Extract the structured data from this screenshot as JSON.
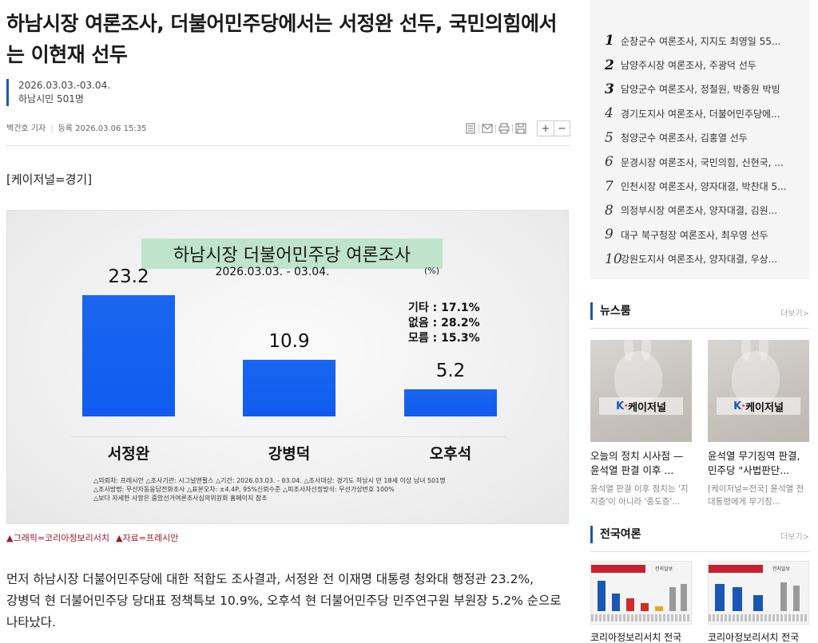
{
  "article": {
    "headline": "하남시장 여론조사, 더불어민주당에서는 서정완 선두, 국민의힘에서는 이현재 선두",
    "summary_period": "2026.03.03.-03.04.",
    "summary_sample": "하남시민 501명",
    "reporter": "백건호 기자",
    "registered": "등록 2026.03.06 15:35",
    "source": "[케이저널=경기]",
    "caption_graphic": "▲그래픽=코리아정보리서치",
    "caption_data": "▲자료=프레시안",
    "body": "먼저 하남시장 더불어민주당에 대한 적합도 조사결과, 서정완 전 이재명 대통령 청와대 행정관 23.2%, 강병덕 현 더불어민주당 당대표 정책특보 10.9%, 오후석 현 더불어민주당 민주연구원 부원장 5.2% 순으로 나타났다."
  },
  "toolbar": {
    "icons": [
      "print-list-icon",
      "mail-icon",
      "print-icon",
      "save-icon"
    ],
    "zoom_in": "+",
    "zoom_out": "−"
  },
  "chart_data": {
    "type": "bar",
    "title": "하남시장 더불어민주당 여론조사",
    "period": "2026.03.03. - 03.04.",
    "unit": "(%)",
    "categories": [
      "서정완",
      "강병덕",
      "오후석"
    ],
    "values": [
      23.2,
      10.9,
      5.2
    ],
    "value_labels": [
      "23.2",
      "10.9",
      "5.2"
    ],
    "bar_color": "#0f5cf0",
    "ylim": [
      0,
      25
    ],
    "extras": [
      "기타 : 17.1%",
      "없음 : 28.2%",
      "모름 : 15.3%"
    ],
    "notes": [
      "△의뢰처: 프레시안 △조사기관: 시그널앤펄스 △기간: 2026.03.03. - 03.04. △조사대상: 경기도 하남시 만 18세 이상 남녀 501명",
      "△조사방법: 무선자동응답전화조사 △표본오차: ±4.4P, 95%신뢰수준 △피조사자선정방식: 무선가상번호 100%",
      "△보다 자세한 사항은 중앙선거여론조사심의위원회 홈페이지 참조"
    ]
  },
  "sidebar": {
    "ranking": [
      {
        "num": "1",
        "text": "순창군수 여론조사, 지지도 최영일 55..."
      },
      {
        "num": "2",
        "text": "남양주시장 여론조사, 주광덕 선두"
      },
      {
        "num": "3",
        "text": "담양군수 여론조사, 정철원, 박종원 박빙"
      },
      {
        "num": "4",
        "text": "경기도지사 여론조사, 더불어민주당에..."
      },
      {
        "num": "5",
        "text": "청양군수 여론조사, 김홍열 선두"
      },
      {
        "num": "6",
        "text": "문경시장 여론조사, 국민의힘, 신현국, ..."
      },
      {
        "num": "7",
        "text": "인천시장 여론조사, 양자대결, 박찬대 5..."
      },
      {
        "num": "8",
        "text": "의정부시장 여론조사, 양자대결, 김원..."
      },
      {
        "num": "9",
        "text": "대구 북구청장 여론조사, 최우영 선두"
      },
      {
        "num": "10",
        "text": "강원도지사 여론조사, 양자대결, 우상..."
      }
    ],
    "newsroom": {
      "title": "뉴스룸",
      "more": "더보기>",
      "logo_k": "K",
      "logo_dot": "·",
      "logo_name": "케이저널",
      "cards": [
        {
          "title": "오늘의 정치 시사점 — 윤석열 판결 이후 ...",
          "desc": "윤석열 판결 이후 정치는 '지지층'이 아니라 '중도층'..."
        },
        {
          "title": "윤석열 무기징역 판결, 민주당 \"사법판단...",
          "desc": "[케이저널=전국] 윤석열 전 대통령에게 무기징..."
        }
      ]
    },
    "national": {
      "title": "전국여론",
      "more": "더보기>",
      "thumb_label": "전지일보",
      "captions": [
        "코리아정보리서치 전국",
        "코리아정보리서치 전국"
      ]
    }
  }
}
